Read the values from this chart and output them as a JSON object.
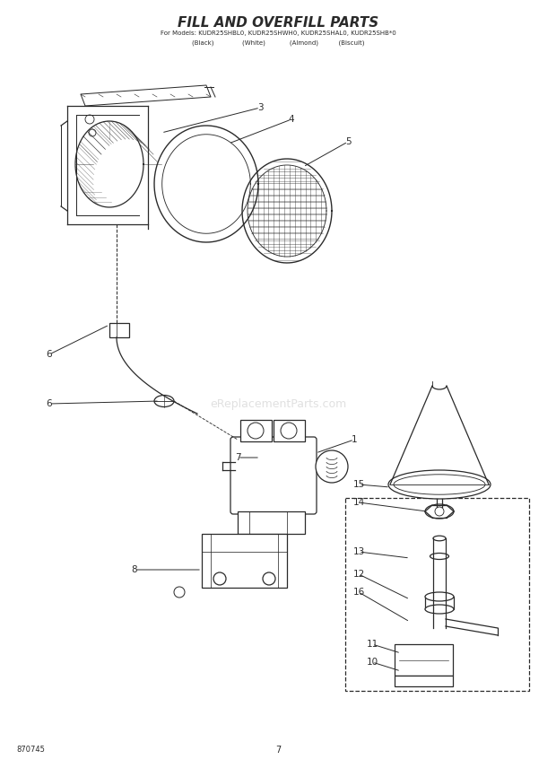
{
  "title": "FILL AND OVERFILL PARTS",
  "subtitle_line1": "For Models: KUDR25SHBL0, KUDR25SHWH0, KUDR25SHAL0, KUDR25SHB*0",
  "subtitle_line2": "(Black)              (White)            (Almond)          (Biscuit)",
  "page_number": "7",
  "diagram_number": "870745",
  "watermark": "eReplacementParts.com",
  "background_color": "#ffffff",
  "line_color": "#2a2a2a"
}
